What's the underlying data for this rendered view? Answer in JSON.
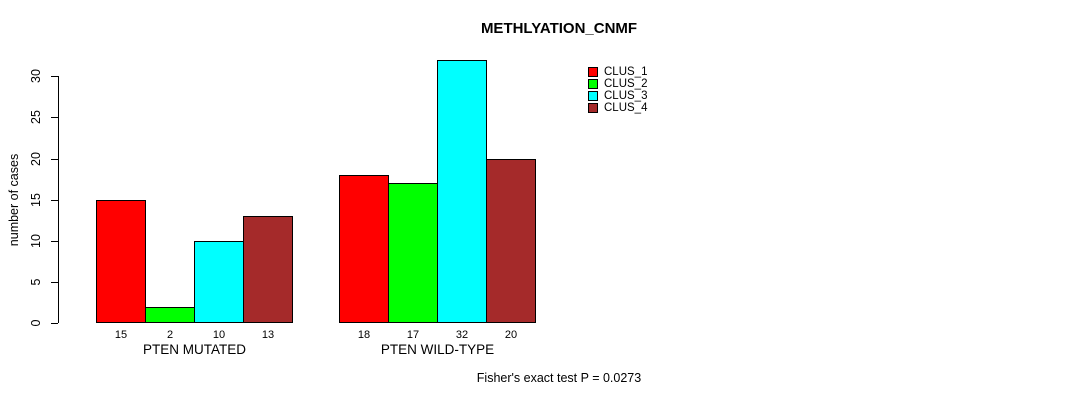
{
  "title": "METHLYATION_CNMF",
  "footer": "Fisher's exact test P = 0.0273",
  "chart_data": {
    "type": "bar",
    "title": "METHLYATION_CNMF",
    "categories": [
      "PTEN MUTATED",
      "PTEN WILD-TYPE"
    ],
    "series": [
      {
        "name": "CLUS_1",
        "color": "#ff0000",
        "values": [
          15,
          18
        ]
      },
      {
        "name": "CLUS_2",
        "color": "#00ff00",
        "values": [
          2,
          17
        ]
      },
      {
        "name": "CLUS_3",
        "color": "#00ffff",
        "values": [
          10,
          32
        ]
      },
      {
        "name": "CLUS_4",
        "color": "#a52a2a",
        "values": [
          13,
          20
        ]
      }
    ],
    "xlabel": "",
    "ylabel": "number of cases",
    "yticks": [
      0,
      5,
      10,
      15,
      20,
      25,
      30
    ],
    "ylim": [
      0,
      33
    ],
    "grid": false,
    "legend_position": "top-right",
    "bar_value_labels_shown": true,
    "annotation": "Fisher's exact test P = 0.0273"
  }
}
